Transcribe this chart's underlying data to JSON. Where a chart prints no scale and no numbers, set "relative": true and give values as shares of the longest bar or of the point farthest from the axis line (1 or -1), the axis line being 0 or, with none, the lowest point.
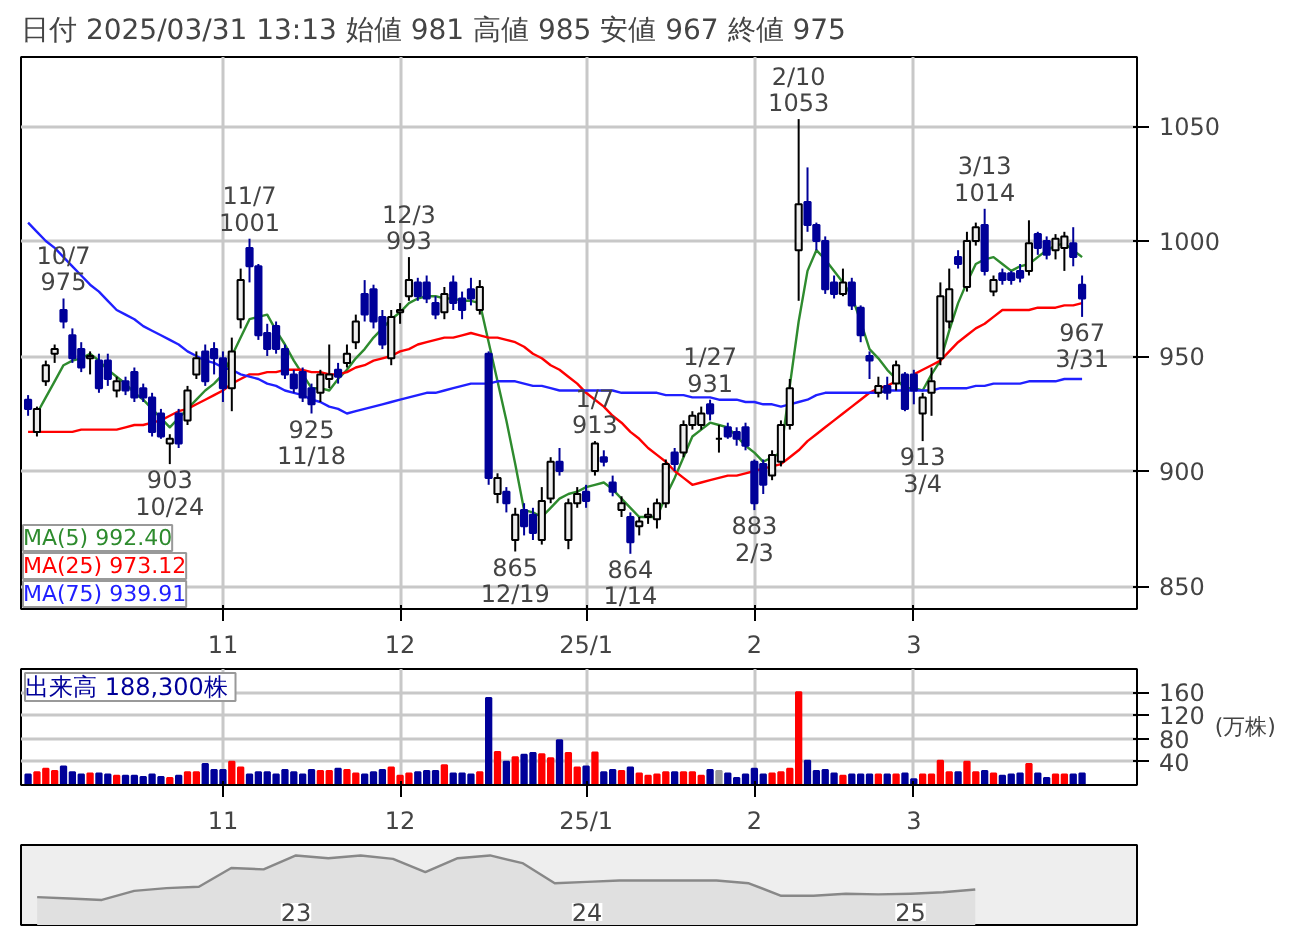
{
  "chart_data": [
    {
      "type": "candlestick",
      "title": "日付 2025/03/31 13:13 始値 981  高値 985  安値 967  終値 975",
      "categories": [
        null,
        null,
        null,
        null,
        null,
        null,
        null,
        null,
        null,
        null,
        null,
        null,
        null,
        null,
        null,
        null,
        null,
        null,
        null,
        null,
        null,
        null,
        "11",
        null,
        null,
        null,
        null,
        null,
        null,
        null,
        null,
        null,
        null,
        null,
        null,
        null,
        null,
        null,
        null,
        null,
        null,
        null,
        "12",
        null,
        null,
        null,
        null,
        null,
        null,
        null,
        null,
        null,
        null,
        null,
        null,
        null,
        null,
        null,
        null,
        null,
        null,
        null,
        null,
        "25/1",
        null,
        null,
        null,
        null,
        null,
        null,
        null,
        null,
        null,
        null,
        null,
        null,
        null,
        null,
        null,
        null,
        null,
        null,
        "2",
        null,
        null,
        null,
        null,
        null,
        null,
        null,
        null,
        null,
        null,
        null,
        null,
        null,
        null,
        null,
        null,
        null,
        "3",
        null,
        null,
        null,
        null,
        null,
        null,
        null,
        null,
        null,
        null,
        null,
        null,
        null,
        null,
        null,
        null,
        null,
        null,
        null
      ],
      "ohlc": [
        [
          931,
          933,
          924,
          927
        ],
        [
          917,
          928,
          915,
          927
        ],
        [
          939,
          948,
          937,
          946
        ],
        [
          951,
          955,
          947,
          953
        ],
        [
          970,
          975,
          962,
          965
        ],
        [
          959,
          962,
          947,
          949
        ],
        [
          953,
          956,
          943,
          945
        ],
        [
          949,
          952,
          942,
          950
        ],
        [
          948,
          951,
          934,
          936
        ],
        [
          948,
          951,
          937,
          940
        ],
        [
          935,
          941,
          932,
          939
        ],
        [
          939,
          941,
          933,
          935
        ],
        [
          943,
          945,
          930,
          932
        ],
        [
          936,
          938,
          930,
          932
        ],
        [
          932,
          934,
          915,
          917
        ],
        [
          925,
          927,
          914,
          915
        ],
        [
          912,
          916,
          903,
          914
        ],
        [
          925,
          927,
          910,
          912
        ],
        [
          922,
          937,
          920,
          935
        ],
        [
          942,
          952,
          940,
          949
        ],
        [
          952,
          955,
          937,
          939
        ],
        [
          953,
          956,
          942,
          949
        ],
        [
          949,
          952,
          930,
          936
        ],
        [
          936,
          958,
          926,
          952
        ],
        [
          966,
          988,
          962,
          983
        ],
        [
          997,
          1001,
          982,
          989
        ],
        [
          989,
          990,
          957,
          959
        ],
        [
          960,
          964,
          950,
          953
        ],
        [
          963,
          965,
          951,
          953
        ],
        [
          953,
          955,
          940,
          942
        ],
        [
          942,
          944,
          934,
          936
        ],
        [
          943,
          945,
          930,
          932
        ],
        [
          936,
          938,
          925,
          929
        ],
        [
          934,
          944,
          930,
          942
        ],
        [
          940,
          955,
          936,
          942
        ],
        [
          944,
          947,
          938,
          941
        ],
        [
          947,
          955,
          945,
          951
        ],
        [
          956,
          968,
          953,
          965
        ],
        [
          977,
          983,
          965,
          968
        ],
        [
          979,
          981,
          962,
          965
        ],
        [
          967,
          970,
          953,
          955
        ],
        [
          949,
          970,
          946,
          967
        ],
        [
          969,
          973,
          964,
          970
        ],
        [
          976,
          993,
          974,
          983
        ],
        [
          982,
          984,
          974,
          976
        ],
        [
          982,
          985,
          973,
          975
        ],
        [
          973,
          976,
          966,
          968
        ],
        [
          969,
          980,
          966,
          977
        ],
        [
          982,
          985,
          970,
          973
        ],
        [
          975,
          978,
          966,
          970
        ],
        [
          979,
          984,
          972,
          975
        ],
        [
          970,
          983,
          968,
          980
        ],
        [
          951,
          952,
          894,
          897
        ],
        [
          890,
          899,
          886,
          897
        ],
        [
          891,
          893,
          882,
          886
        ],
        [
          870,
          884,
          865,
          881
        ],
        [
          883,
          886,
          872,
          876
        ],
        [
          881,
          884,
          870,
          873
        ],
        [
          870,
          893,
          868,
          887
        ],
        [
          888,
          906,
          886,
          904
        ],
        [
          904,
          910,
          898,
          900
        ],
        [
          870,
          888,
          866,
          886
        ],
        [
          886,
          893,
          884,
          890
        ],
        [
          891,
          894,
          884,
          887
        ],
        [
          900,
          913,
          898,
          912
        ],
        [
          906,
          909,
          902,
          904
        ],
        [
          895,
          898,
          889,
          891
        ],
        [
          883,
          889,
          880,
          886
        ],
        [
          880,
          882,
          864,
          869
        ],
        [
          876,
          880,
          872,
          878
        ],
        [
          880,
          884,
          877,
          881
        ],
        [
          879,
          888,
          875,
          886
        ],
        [
          886,
          905,
          884,
          903
        ],
        [
          908,
          910,
          900,
          903
        ],
        [
          908,
          922,
          906,
          920
        ],
        [
          920,
          926,
          918,
          924
        ],
        [
          920,
          928,
          918,
          925
        ],
        [
          929,
          931,
          922,
          925
        ],
        [
          914,
          920,
          908,
          914
        ],
        [
          919,
          921,
          914,
          915
        ],
        [
          917,
          919,
          911,
          914
        ],
        [
          919,
          921,
          909,
          911
        ],
        [
          904,
          905,
          883,
          886
        ],
        [
          903,
          905,
          890,
          894
        ],
        [
          898,
          909,
          896,
          907
        ],
        [
          904,
          922,
          902,
          920
        ],
        [
          920,
          940,
          918,
          936
        ],
        [
          996,
          1053,
          974,
          1016
        ],
        [
          1017,
          1032,
          1004,
          1007
        ],
        [
          1007,
          1008,
          996,
          1000
        ],
        [
          1000,
          1002,
          977,
          979
        ],
        [
          982,
          985,
          975,
          977
        ],
        [
          977,
          988,
          976,
          982
        ],
        [
          982,
          984,
          970,
          972
        ],
        [
          971,
          972,
          956,
          959
        ],
        [
          950,
          952,
          940,
          948
        ],
        [
          934,
          941,
          932,
          937
        ],
        [
          937,
          941,
          931,
          934
        ],
        [
          938,
          948,
          935,
          946
        ],
        [
          942,
          943,
          926,
          927
        ],
        [
          942,
          944,
          929,
          935
        ],
        [
          925,
          934,
          913,
          932
        ],
        [
          934,
          945,
          924,
          939
        ],
        [
          949,
          982,
          946,
          976
        ],
        [
          965,
          988,
          962,
          979
        ],
        [
          993,
          996,
          988,
          990
        ],
        [
          980,
          1004,
          978,
          1000
        ],
        [
          1000,
          1008,
          998,
          1006
        ],
        [
          1007,
          1014,
          985,
          987
        ],
        [
          978,
          985,
          976,
          983
        ],
        [
          986,
          988,
          981,
          983
        ],
        [
          986,
          987,
          981,
          983
        ],
        [
          987,
          990,
          982,
          984
        ],
        [
          987,
          1009,
          985,
          999
        ],
        [
          1003,
          1004,
          994,
          997
        ],
        [
          1000,
          1002,
          992,
          994
        ],
        [
          996,
          1003,
          992,
          1001
        ],
        [
          997,
          1004,
          987,
          1002
        ],
        [
          999,
          1006,
          989,
          993
        ],
        [
          981,
          985,
          967,
          975
        ]
      ],
      "series": [
        {
          "name": "MA(5) 992.40",
          "type": "line",
          "color": "#2e8b2e",
          "values": [
            null,
            925,
            932,
            939,
            946,
            948,
            949,
            951,
            948,
            944,
            941,
            938,
            934,
            931,
            927,
            923,
            919,
            923,
            927,
            931,
            935,
            938,
            942,
            950,
            958,
            966,
            967,
            968,
            961,
            955,
            948,
            942,
            936,
            936,
            935,
            940,
            944,
            949,
            953,
            958,
            962,
            966,
            969,
            973,
            975,
            976,
            976,
            975,
            975,
            974,
            974,
            973,
            956,
            939,
            922,
            903,
            883,
            882,
            880,
            884,
            888,
            890,
            891,
            893,
            894,
            895,
            892,
            888,
            884,
            880,
            880,
            880,
            889,
            897,
            906,
            915,
            918,
            921,
            920,
            919,
            915,
            911,
            908,
            904,
            906,
            908,
            937,
            965,
            987,
            996,
            992,
            987,
            982,
            976,
            965,
            953,
            949,
            944,
            940,
            936,
            936,
            935,
            942,
            948,
            961,
            973,
            982,
            990,
            992,
            993,
            990,
            987,
            989,
            990,
            993,
            996,
            998,
            999,
            996,
            993
          ]
        },
        {
          "name": "MA(25) 973.12",
          "type": "line",
          "color": "#ff0000",
          "values": [
            917,
            917,
            917,
            917,
            917,
            917,
            918,
            918,
            918,
            918,
            918,
            919,
            920,
            920,
            921,
            922,
            924,
            926,
            927,
            929,
            931,
            933,
            935,
            938,
            940,
            942,
            942,
            943,
            943,
            944,
            944,
            944,
            943,
            943,
            942,
            942,
            943,
            945,
            946,
            948,
            949,
            950,
            952,
            953,
            955,
            956,
            957,
            958,
            958,
            959,
            960,
            959,
            958,
            958,
            957,
            956,
            954,
            951,
            949,
            946,
            944,
            941,
            938,
            934,
            931,
            928,
            924,
            921,
            917,
            914,
            910,
            907,
            904,
            900,
            897,
            894,
            895,
            896,
            897,
            898,
            898,
            899,
            900,
            901,
            902,
            903,
            906,
            909,
            913,
            916,
            919,
            922,
            925,
            928,
            931,
            934,
            936,
            937,
            939,
            null,
            942,
            944,
            946,
            948,
            952,
            956,
            959,
            962,
            964,
            967,
            970,
            970,
            970,
            970,
            971,
            971,
            971,
            972,
            972,
            973
          ]
        },
        {
          "name": "MA(75) 939.91",
          "type": "line",
          "color": "#2020ff",
          "values": [
            1008,
            1004,
            1000,
            997,
            993,
            989,
            985,
            981,
            978,
            974,
            970,
            968,
            966,
            963,
            961,
            959,
            957,
            955,
            952,
            950,
            948,
            947,
            945,
            944,
            942,
            941,
            940,
            938,
            937,
            935,
            934,
            933,
            931,
            930,
            928,
            927,
            925,
            926,
            927,
            928,
            929,
            930,
            931,
            932,
            933,
            934,
            934,
            935,
            936,
            937,
            938,
            938,
            938,
            939,
            939,
            939,
            938,
            937,
            937,
            936,
            935,
            935,
            935,
            935,
            935,
            935,
            935,
            934,
            934,
            934,
            934,
            934,
            933,
            933,
            933,
            932,
            932,
            932,
            931,
            931,
            931,
            930,
            930,
            929,
            929,
            928,
            929,
            930,
            931,
            933,
            934,
            934,
            934,
            934,
            934,
            934,
            934,
            935,
            935,
            935,
            935,
            935,
            935,
            936,
            936,
            936,
            936,
            937,
            937,
            938,
            938,
            938,
            938,
            939,
            939,
            939,
            939,
            940,
            940,
            940
          ]
        }
      ],
      "annotations": [
        {
          "text": "10/7\n975",
          "y": 975
        },
        {
          "text": "903\n10/24",
          "y": 903
        },
        {
          "text": "11/7\n1001",
          "y": 1001
        },
        {
          "text": "925\n11/18",
          "y": 925
        },
        {
          "text": "12/3\n993",
          "y": 993
        },
        {
          "text": "865\n12/19",
          "y": 865
        },
        {
          "text": "1/7\n913",
          "y": 913
        },
        {
          "text": "864\n1/14",
          "y": 864
        },
        {
          "text": "1/27\n931",
          "y": 931
        },
        {
          "text": "883\n2/3",
          "y": 883
        },
        {
          "text": "2/10\n1053",
          "y": 1053
        },
        {
          "text": "913\n3/4",
          "y": 913
        },
        {
          "text": "3/13\n1014",
          "y": 1014
        },
        {
          "text": "967\n3/31",
          "y": 967
        }
      ],
      "ylim": [
        840,
        1080
      ],
      "yticks": [
        850,
        900,
        950,
        1000,
        1050
      ],
      "grid": true
    },
    {
      "type": "bar",
      "title": "出来高  188,300株",
      "ylabel": "(万株)",
      "categories": [
        null,
        null,
        null,
        null,
        null,
        null,
        null,
        null,
        null,
        null,
        null,
        null,
        null,
        null,
        null,
        null,
        null,
        null,
        null,
        null,
        null,
        null,
        "11",
        null,
        null,
        null,
        null,
        null,
        null,
        null,
        null,
        null,
        null,
        null,
        null,
        null,
        null,
        null,
        null,
        null,
        null,
        null,
        "12",
        null,
        null,
        null,
        null,
        null,
        null,
        null,
        null,
        null,
        null,
        null,
        null,
        null,
        null,
        null,
        null,
        null,
        null,
        null,
        null,
        "25/1",
        null,
        null,
        null,
        null,
        null,
        null,
        null,
        null,
        null,
        null,
        null,
        null,
        null,
        null,
        null,
        null,
        null,
        null,
        "2",
        null,
        null,
        null,
        null,
        null,
        null,
        null,
        null,
        null,
        null,
        null,
        null,
        null,
        null,
        null,
        null,
        null,
        "3",
        null,
        null,
        null,
        null,
        null,
        null,
        null,
        null,
        null,
        null,
        null,
        null,
        null,
        null,
        null,
        null,
        null,
        null,
        null
      ],
      "values": [
        18,
        22,
        28,
        24,
        32,
        22,
        18,
        20,
        20,
        18,
        16,
        16,
        16,
        14,
        18,
        14,
        12,
        16,
        22,
        22,
        36,
        26,
        26,
        40,
        30,
        18,
        22,
        22,
        18,
        26,
        22,
        18,
        26,
        24,
        24,
        28,
        26,
        20,
        18,
        22,
        26,
        30,
        16,
        20,
        22,
        24,
        24,
        34,
        20,
        20,
        18,
        22,
        150,
        57,
        40,
        48,
        52,
        55,
        53,
        46,
        77,
        55,
        30,
        32,
        56,
        22,
        26,
        24,
        30,
        20,
        16,
        18,
        22,
        22,
        22,
        22,
        16,
        26,
        24,
        20,
        12,
        18,
        28,
        18,
        20,
        22,
        28,
        160,
        42,
        24,
        26,
        20,
        16,
        18,
        18,
        18,
        18,
        18,
        18,
        20,
        10,
        18,
        18,
        42,
        22,
        22,
        40,
        22,
        24,
        20,
        16,
        18,
        20,
        36,
        20,
        12,
        18,
        18,
        18,
        20
      ],
      "colors": [
        "#000099",
        "#ff0000",
        "#ff0000",
        "#ff0000",
        "#000099",
        "#000099",
        "#000099",
        "#ff0000",
        "#000099",
        "#000099",
        "#ff0000",
        "#000099",
        "#000099",
        "#000099",
        "#000099",
        "#000099",
        "#ff0000",
        "#000099",
        "#ff0000",
        "#ff0000",
        "#000099",
        "#000099",
        "#000099",
        "#ff0000",
        "#ff0000",
        "#000099",
        "#000099",
        "#000099",
        "#000099",
        "#000099",
        "#000099",
        "#000099",
        "#000099",
        "#ff0000",
        "#ff0000",
        "#000099",
        "#ff0000",
        "#ff0000",
        "#000099",
        "#000099",
        "#000099",
        "#ff0000",
        "#ff0000",
        "#ff0000",
        "#000099",
        "#000099",
        "#000099",
        "#ff0000",
        "#000099",
        "#000099",
        "#000099",
        "#ff0000",
        "#000099",
        "#ff0000",
        "#000099",
        "#ff0000",
        "#000099",
        "#000099",
        "#ff0000",
        "#ff0000",
        "#000099",
        "#ff0000",
        "#ff0000",
        "#000099",
        "#ff0000",
        "#000099",
        "#000099",
        "#ff0000",
        "#000099",
        "#ff0000",
        "#ff0000",
        "#ff0000",
        "#ff0000",
        "#000099",
        "#ff0000",
        "#ff0000",
        "#ff0000",
        "#000099",
        "#999999",
        "#000099",
        "#000099",
        "#000099",
        "#000099",
        "#000099",
        "#ff0000",
        "#ff0000",
        "#ff0000",
        "#ff0000",
        "#000099",
        "#000099",
        "#000099",
        "#000099",
        "#ff0000",
        "#000099",
        "#000099",
        "#000099",
        "#ff0000",
        "#000099",
        "#ff0000",
        "#000099",
        "#000099",
        "#ff0000",
        "#ff0000",
        "#ff0000",
        "#ff0000",
        "#000099",
        "#ff0000",
        "#ff0000",
        "#000099",
        "#ff0000",
        "#000099",
        "#000099",
        "#000099",
        "#ff0000",
        "#000099",
        "#000099",
        "#ff0000",
        "#ff0000",
        "#000099",
        "#000099"
      ],
      "ylim": [
        0,
        200
      ],
      "yticks": [
        40,
        80,
        120,
        160
      ],
      "grid": true
    },
    {
      "type": "area",
      "relative": true,
      "color": "#888888",
      "categories": [
        null,
        null,
        null,
        null,
        null,
        null,
        null,
        null,
        "23",
        null,
        null,
        null,
        null,
        null,
        null,
        null,
        null,
        "24",
        null,
        null,
        null,
        null,
        null,
        null,
        null,
        null,
        null,
        "25",
        null,
        null
      ],
      "values": [
        0.4,
        0.38,
        0.36,
        0.49,
        0.53,
        0.55,
        0.82,
        0.8,
        1,
        0.96,
        1,
        0.95,
        0.76,
        0.96,
        1,
        0.89,
        0.6,
        0.62,
        0.64,
        0.64,
        0.64,
        0.64,
        0.6,
        0.42,
        0.42,
        0.45,
        0.44,
        0.45,
        0.47,
        0.51
      ]
    }
  ]
}
